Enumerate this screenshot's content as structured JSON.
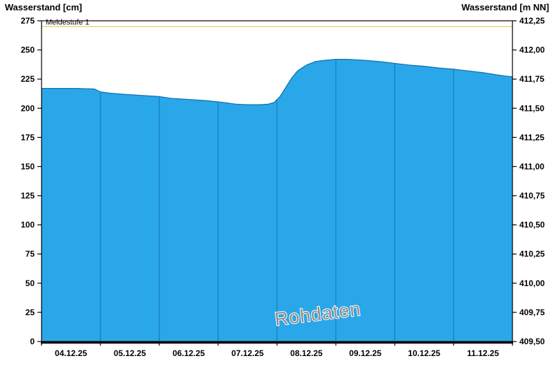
{
  "header": {
    "left_axis_title": "Wasserstand [cm]",
    "right_axis_title": "Wasserstand [m NN]"
  },
  "chart_data": {
    "type": "area",
    "title": "",
    "watermark": "Rohdaten",
    "legend_position": "none",
    "grid": "vertical-day-lines-inside-area",
    "x_range": [
      0,
      8
    ],
    "x_tick_labels": [
      "04.12.25",
      "05.12.25",
      "06.12.25",
      "07.12.25",
      "08.12.25",
      "09.12.25",
      "10.12.25",
      "11.12.25"
    ],
    "y_left": {
      "label": "Wasserstand [cm]",
      "min": 0,
      "max": 275,
      "step": 25
    },
    "y_right": {
      "label": "Wasserstand [m NN]",
      "min": 409.5,
      "max": 412.25,
      "step": 0.25
    },
    "y_left_ticks": [
      "0",
      "25",
      "50",
      "75",
      "100",
      "125",
      "150",
      "175",
      "200",
      "225",
      "250",
      "275"
    ],
    "y_right_ticks": [
      "409,50",
      "409,75",
      "410,00",
      "410,25",
      "410,50",
      "410,75",
      "411,00",
      "411,25",
      "411,50",
      "411,75",
      "412,00",
      "412,25"
    ],
    "threshold": {
      "label": "Meldestufe 1",
      "value_cm": 270,
      "color": "#ddd24a"
    },
    "series": [
      {
        "name": "Wasserstand Rohdaten",
        "fill": "#2aa7e8",
        "line": "#1373b4",
        "points": [
          [
            0.0,
            217
          ],
          [
            0.3,
            217
          ],
          [
            0.6,
            217
          ],
          [
            0.9,
            216.5
          ],
          [
            1.0,
            214
          ],
          [
            1.15,
            213
          ],
          [
            1.4,
            212
          ],
          [
            1.7,
            211
          ],
          [
            2.0,
            210
          ],
          [
            2.2,
            208.5
          ],
          [
            2.5,
            207.5
          ],
          [
            2.8,
            206.5
          ],
          [
            3.0,
            205.5
          ],
          [
            3.15,
            204.5
          ],
          [
            3.3,
            203.5
          ],
          [
            3.5,
            203
          ],
          [
            3.7,
            203
          ],
          [
            3.85,
            203.5
          ],
          [
            3.95,
            205
          ],
          [
            4.05,
            210
          ],
          [
            4.15,
            218
          ],
          [
            4.25,
            226
          ],
          [
            4.35,
            232
          ],
          [
            4.5,
            237
          ],
          [
            4.65,
            240
          ],
          [
            4.8,
            241
          ],
          [
            5.0,
            242
          ],
          [
            5.2,
            242
          ],
          [
            5.35,
            241.5
          ],
          [
            5.5,
            241
          ],
          [
            5.75,
            240
          ],
          [
            6.0,
            238.5
          ],
          [
            6.25,
            237
          ],
          [
            6.5,
            236
          ],
          [
            6.75,
            234.5
          ],
          [
            7.0,
            233.5
          ],
          [
            7.25,
            232
          ],
          [
            7.5,
            230.5
          ],
          [
            7.75,
            228.5
          ],
          [
            7.9,
            227.5
          ],
          [
            8.0,
            227
          ]
        ]
      }
    ]
  }
}
